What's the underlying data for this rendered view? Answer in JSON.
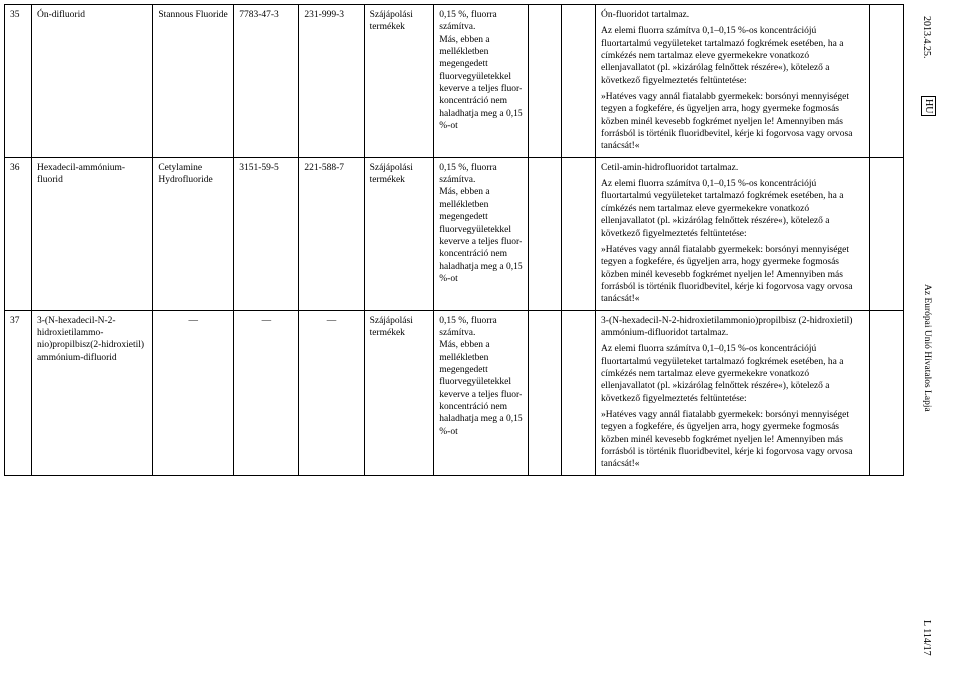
{
  "side": {
    "date": "2013.4.25.",
    "hu": "HU",
    "journal": "Az Európai Unió Hivatalos Lapja",
    "l": "L 114/17"
  },
  "rows": [
    {
      "num": "35",
      "name": "Ón-difluorid",
      "syn": "Stannous Fluo­ride",
      "cas": "7783-47-3",
      "ec": "231-999-3",
      "type": "Szájápolási termékek",
      "conc": "0,15 %, fluorra számítva.\nMás, ebben a mellékletben megengedett fluorvegyüle­tekkel keverve a teljes fluor­koncentráció nem halad­hatja meg a 0,15 %-ot",
      "warn_title": "Ón-fluoridot tartalmaz.",
      "warn_body": "Az elemi fluorra számítva 0,1–0,15 %-os koncentrációjú fluortartalmú vegyületeket tartalmazó fogkrémek esetében, ha a címkézés nem tartalmaz eleve gyermekekre vonatkozó ellenjavallatot (pl. »kizárólag felnőttek részére«), kötelező a következő figyelmeztetés feltüntetése:",
      "warn_quote": "»Hatéves vagy annál fiatalabb gyermekek: borsónyi mennyiséget tegyen a fogkefére, és ügyeljen arra, hogy gyermeke fogmosás közben minél kevesebb fogkrémet nyeljen le! Amennyiben más forrásból is történik fluoridbevitel, kérje ki fogorvosa vagy orvosa tanácsát!«"
    },
    {
      "num": "36",
      "name": "Hexadecil-ammónium-fluorid",
      "syn": "Cetylamine Hydrofluoride",
      "cas": "3151-59-5",
      "ec": "221-588-7",
      "type": "Szájápolási termékek",
      "conc": "0,15 %, fluorra számítva.\nMás, ebben a mellékletben megengedett fluorvegyüle­tekkel keverve a teljes fluor­koncentráció nem halad­hatja meg a 0,15 %-ot",
      "warn_title": "Cetil-amin-hidrofluoridot tartalmaz.",
      "warn_body": "Az elemi fluorra számítva 0,1–0,15 %-os koncentrációjú fluortartalmú vegyületeket tartalmazó fogkrémek esetében, ha a címkézés nem tartalmaz eleve gyermekekre vonatkozó ellenjavallatot (pl. »kizárólag felnőttek részére«), kötelező a következő figyelmeztetés feltüntetése:",
      "warn_quote": "»Hatéves vagy annál fiatalabb gyermekek: borsónyi mennyiséget tegyen a fogkefére, és ügyeljen arra, hogy gyermeke fogmosás közben minél kevesebb fogkrémet nyeljen le! Amennyiben más forrásból is történik fluoridbevitel, kérje ki fogorvosa vagy orvosa tanácsát!«"
    },
    {
      "num": "37",
      "name": "3-(N-hexadecil-N-2-hidroxietilammo­nio)propilbisz(2-hidr­oxietil) ammónium-difluorid",
      "syn": "—",
      "cas": "—",
      "ec": "—",
      "type": "Szájápolási termékek",
      "conc": "0,15 %, fluorra számítva.\nMás, ebben a mellékletben megengedett fluorvegyüle­tekkel keverve a teljes fluor­koncentráció nem halad­hatja meg a 0,15 %-ot",
      "warn_title": "3-(N-hexadecil-N-2-hidroxietilammo­nio)propilbisz (2-hidroxietil) ammónium-difluoridot tartalmaz.",
      "warn_body": "Az elemi fluorra számítva 0,1–0,15 %-os koncentrációjú fluortartalmú vegyületeket tartalmazó fogkrémek esetében, ha a címkézés nem tartalmaz eleve gyermekekre vonatkozó ellenjavallatot (pl. »kizárólag felnőttek részére«), kötelező a következő figyelmeztetés feltüntetése:",
      "warn_quote": "»Hatéves vagy annál fiatalabb gyermekek: borsónyi mennyiséget tegyen a fogkefére, és ügyeljen arra, hogy gyermeke fogmosás közben minél kevesebb fogkrémet nyeljen le! Amennyiben más forrásból is történik fluoridbevitel, kérje ki fogorvosa vagy orvosa tanácsát!«"
    }
  ]
}
